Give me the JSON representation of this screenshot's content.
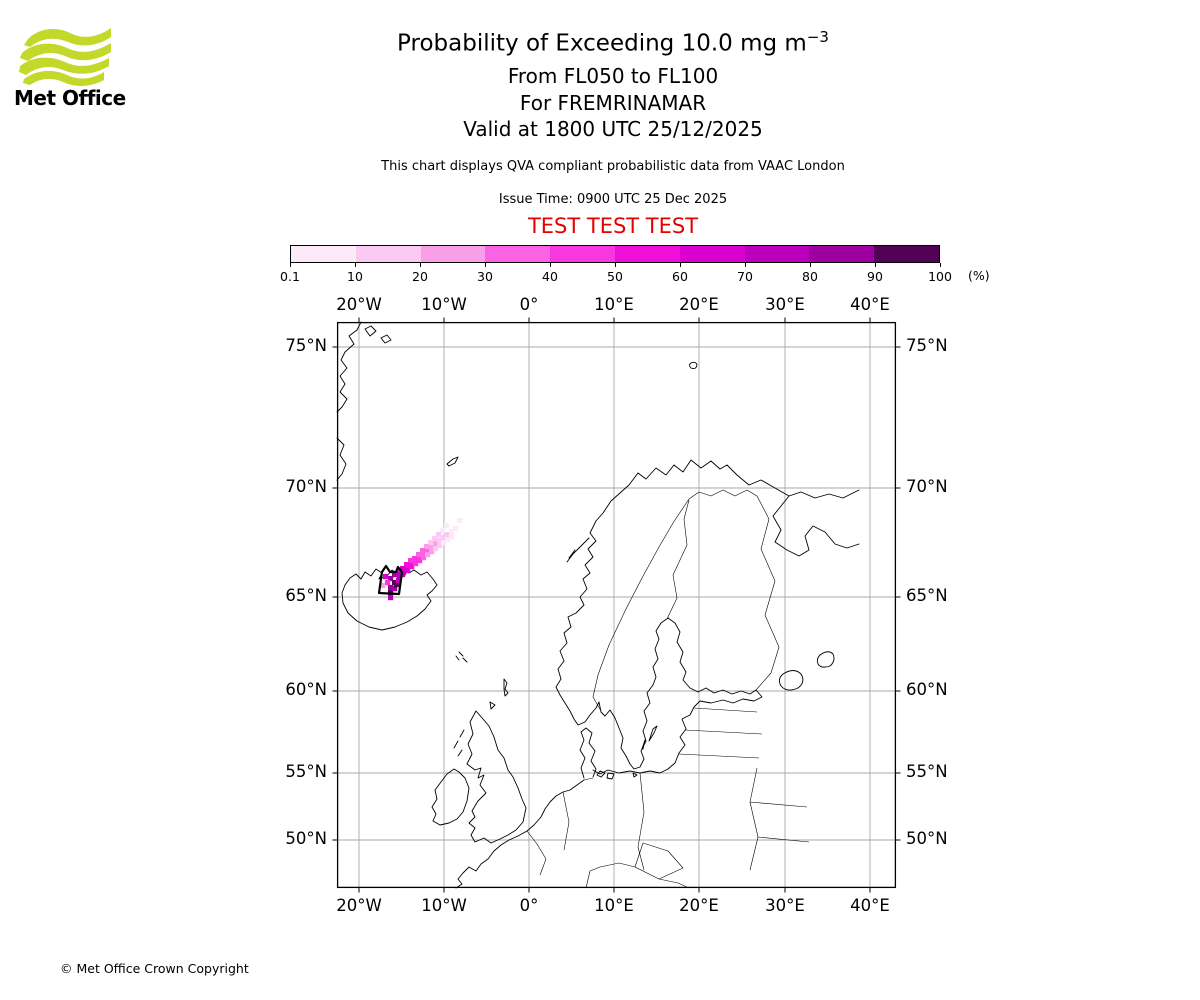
{
  "branding": {
    "logo_text": "Met Office",
    "logo_green": "#c3d82b"
  },
  "header": {
    "title_main": "Probability of Exceeding 10.0 mg m",
    "title_sup": "−3",
    "subtitle1": "From FL050 to FL100",
    "subtitle2": "For FREMRINAMAR",
    "subtitle3": "Valid at 1800 UTC 25/12/2025",
    "note": "This chart displays QVA compliant probabilistic data from VAAC London",
    "issue_time": "Issue Time: 0900 UTC 25 Dec 2025",
    "test_banner": "TEST TEST TEST",
    "test_color": "#e60000"
  },
  "colorbar": {
    "labels": [
      "0.1",
      "10",
      "20",
      "30",
      "40",
      "50",
      "60",
      "70",
      "80",
      "90",
      "100"
    ],
    "unit": "(%)",
    "colors": [
      "#fdeaf9",
      "#fbc9f1",
      "#f99fea",
      "#fb63e4",
      "#f937e1",
      "#ef0fd9",
      "#da00d0",
      "#bb00bb",
      "#9e00a0",
      "#530057"
    ]
  },
  "map": {
    "lon_labels": [
      "20°W",
      "10°W",
      "0°",
      "10°E",
      "20°E",
      "30°E",
      "40°E"
    ],
    "lat_labels": [
      "75°N",
      "70°N",
      "65°N",
      "60°N",
      "55°N",
      "50°N"
    ]
  },
  "footer": {
    "copyright": "© Met Office Crown Copyright"
  },
  "chart_data": {
    "type": "heatmap",
    "title": "Probability of Exceeding 10.0 mg m−3",
    "flight_levels": "From FL050 to FL100",
    "volcano": "FREMRINAMAR",
    "valid_time": "1800 UTC 25/12/2025",
    "issue_time": "0900 UTC 25 Dec 2025",
    "source": "VAAC London",
    "legend_percent_bins": [
      0.1,
      10,
      20,
      30,
      40,
      50,
      60,
      70,
      80,
      90,
      100
    ],
    "lon_ticks_deg": [
      -20,
      -10,
      0,
      10,
      20,
      30,
      40
    ],
    "lat_ticks_deg": [
      75,
      70,
      65,
      60,
      55,
      50
    ],
    "grid": true,
    "legend_position": "top",
    "plume_description": "Diagonal ash plume from NE Iceland extending northeast; probability highest (90-100%) at source, fading to <10% at tip near 68.5N 13W",
    "plume_cells": [
      [
        51,
        268,
        10
      ],
      [
        51,
        273,
        8
      ],
      [
        51,
        263,
        9
      ],
      [
        55,
        264,
        9
      ],
      [
        57,
        260,
        10
      ],
      [
        51,
        254,
        9
      ],
      [
        55,
        258,
        10
      ],
      [
        46,
        252,
        7
      ],
      [
        48,
        258,
        5
      ],
      [
        43,
        261,
        3
      ],
      [
        55,
        250,
        9
      ],
      [
        60,
        252,
        9
      ],
      [
        59,
        256,
        8
      ],
      [
        64,
        248,
        8
      ],
      [
        60,
        246,
        7
      ],
      [
        64,
        244,
        7
      ],
      [
        68,
        246,
        7
      ],
      [
        68,
        241,
        6
      ],
      [
        63,
        250,
        8
      ],
      [
        72,
        242,
        6
      ],
      [
        72,
        238,
        6
      ],
      [
        76,
        239,
        5
      ],
      [
        76,
        234,
        6
      ],
      [
        80,
        236,
        5
      ],
      [
        80,
        231,
        5
      ],
      [
        84,
        233,
        4
      ],
      [
        84,
        228,
        4
      ],
      [
        88,
        230,
        3
      ],
      [
        88,
        225,
        4
      ],
      [
        92,
        227,
        3
      ],
      [
        92,
        222,
        3
      ],
      [
        96,
        224,
        2
      ],
      [
        96,
        219,
        3
      ],
      [
        100,
        221,
        2
      ],
      [
        100,
        216,
        2
      ],
      [
        104,
        218,
        1
      ],
      [
        104,
        213,
        2
      ],
      [
        108,
        215,
        1
      ],
      [
        108,
        210,
        2
      ],
      [
        112,
        212,
        1
      ],
      [
        112,
        207,
        1
      ],
      [
        116,
        204,
        1
      ],
      [
        103,
        206,
        1
      ],
      [
        99,
        210,
        2
      ],
      [
        107,
        201,
        1
      ],
      [
        120,
        196,
        1
      ],
      [
        95,
        214,
        2
      ],
      [
        91,
        218,
        2
      ],
      [
        87,
        222,
        3
      ],
      [
        83,
        226,
        4
      ],
      [
        79,
        230,
        4
      ],
      [
        75,
        234,
        5
      ],
      [
        71,
        236,
        5
      ],
      [
        67,
        240,
        6
      ],
      [
        63,
        244,
        7
      ],
      [
        59,
        250,
        8
      ]
    ]
  }
}
